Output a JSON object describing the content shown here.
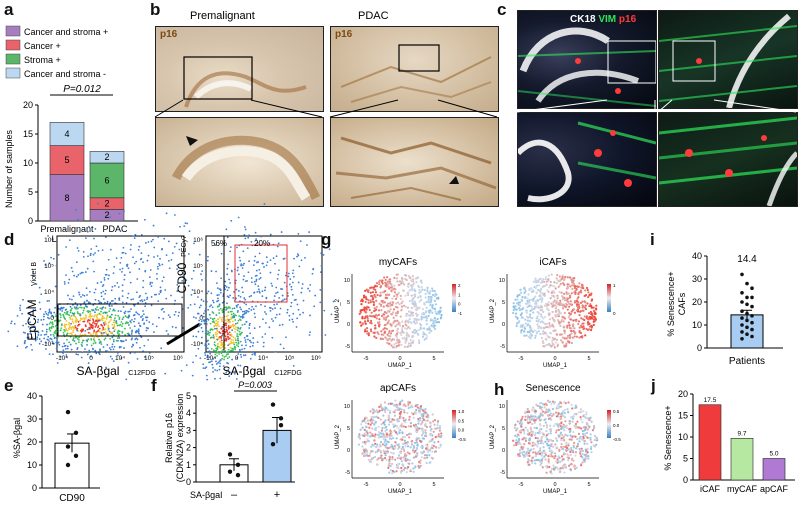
{
  "figure_labels": [
    "a",
    "b",
    "c",
    "d",
    "e",
    "f",
    "g",
    "h",
    "i",
    "j"
  ],
  "panel_a": {
    "legend": [
      "Cancer and stroma +",
      "Cancer +",
      "Stroma +",
      "Cancer and stroma -"
    ],
    "colors": {
      "Cancer and stroma +": "#a67ec0",
      "Cancer +": "#e8636a",
      "Stroma +": "#5bb66a",
      "Cancer and stroma -": "#bcd8f0"
    },
    "pvalue": "P=0.012",
    "chart_data": {
      "type": "bar",
      "stacked": true,
      "categories": [
        "Premalignant\nLesions",
        "PDAC"
      ],
      "ylabel": "Number of samples",
      "ylim": [
        0,
        20
      ],
      "yticks": [
        0,
        5,
        10,
        15,
        20
      ],
      "series": [
        {
          "name": "Cancer and stroma +",
          "values": [
            8,
            2
          ]
        },
        {
          "name": "Cancer +",
          "values": [
            5,
            2
          ]
        },
        {
          "name": "Stroma +",
          "values": [
            0,
            6
          ]
        },
        {
          "name": "Cancer and stroma -",
          "values": [
            4,
            2
          ]
        }
      ]
    }
  },
  "panel_b": {
    "titles": [
      "Premalignant",
      "PDAC"
    ],
    "stain": "p16"
  },
  "panel_c": {
    "stain_labels": [
      "CK18",
      "VIM",
      "p16"
    ],
    "stain_colors": [
      "#ffffff",
      "#2ee65a",
      "#ff3b3b"
    ]
  },
  "panel_d": {
    "left_ylabel": "EpCAM",
    "left_ylabel_sub": "Violet B",
    "right_ylabel": "CD90",
    "right_ylabel_sub": "PECy7",
    "xlabel": "SA-βgal",
    "xlabel_sub": "C12FDG",
    "gate_left": "56%",
    "gate_right": "20%",
    "xticks": [
      "-10⁴",
      "0",
      "10⁴",
      "10⁵",
      "10⁶"
    ],
    "yticks": [
      "-10⁴",
      "0",
      "10⁴",
      "10⁵",
      "10⁶"
    ]
  },
  "panel_e": {
    "chart_data": {
      "type": "bar",
      "categories": [
        "CD90"
      ],
      "values": [
        19.5
      ],
      "ylabel": "%SA-βgal",
      "ylim": [
        0,
        40
      ],
      "yticks": [
        0,
        10,
        20,
        30,
        40
      ],
      "points": [
        33,
        24,
        18,
        14,
        10
      ]
    }
  },
  "panel_f": {
    "pvalue": "P=0.003",
    "ylabel": "Relative p16",
    "ylabel2": "(CDKN2A) expression",
    "xlabel": "SA-βgal",
    "chart_data": {
      "type": "bar",
      "categories": [
        "–",
        "+"
      ],
      "values": [
        1.0,
        3.0
      ],
      "ylim": [
        0,
        5
      ],
      "yticks": [
        0,
        1,
        2,
        3,
        4,
        5
      ],
      "points": [
        [
          1.6,
          1.0,
          0.6,
          0.4
        ],
        [
          4.5,
          3.3,
          2.2,
          3.7
        ]
      ]
    }
  },
  "panel_g": {
    "titles": [
      "myCAFs",
      "iCAFs",
      "apCAFs"
    ],
    "axis_x": "UMAP_1",
    "axis_y": "UMAP_2",
    "xticks": [
      "-5",
      "0",
      "5"
    ],
    "yticks": [
      "-5",
      "0",
      "5",
      "10"
    ],
    "scale_g1": [
      "2",
      "1",
      "0",
      "-1"
    ],
    "scale_g2": [
      "1",
      "0"
    ],
    "scale_g3": [
      "1.0",
      "0.5",
      "0.0",
      "-0.5"
    ]
  },
  "panel_h": {
    "title": "Senescence",
    "scale": [
      "0.5",
      "0.0",
      "-0.5"
    ]
  },
  "panel_i": {
    "value_label": "14.4",
    "ylabel": "% Senescence+",
    "ylabel2": "CAFs",
    "xlabel": "Patients",
    "chart_data": {
      "type": "bar",
      "categories": [
        "Patients"
      ],
      "values": [
        14.4
      ],
      "ylim": [
        0,
        40
      ],
      "yticks": [
        0,
        10,
        20,
        30,
        40
      ],
      "points": [
        32,
        28,
        26,
        24,
        22,
        22,
        20,
        19,
        18,
        16,
        15,
        14,
        13,
        12,
        11,
        10,
        9,
        8,
        7,
        6,
        5,
        4
      ]
    }
  },
  "panel_j": {
    "ylabel": "% Senescence+",
    "chart_data": {
      "type": "bar",
      "categories": [
        "iCAF",
        "myCAF",
        "apCAF"
      ],
      "values": [
        17.5,
        9.7,
        5.0
      ],
      "value_labels": [
        "17.5",
        "9.7",
        "5.0"
      ],
      "ylim": [
        0,
        20
      ],
      "yticks": [
        0,
        5,
        10,
        15,
        20
      ],
      "colors": [
        "#ef3b3b",
        "#b6e8a2",
        "#b07ad4"
      ]
    }
  }
}
